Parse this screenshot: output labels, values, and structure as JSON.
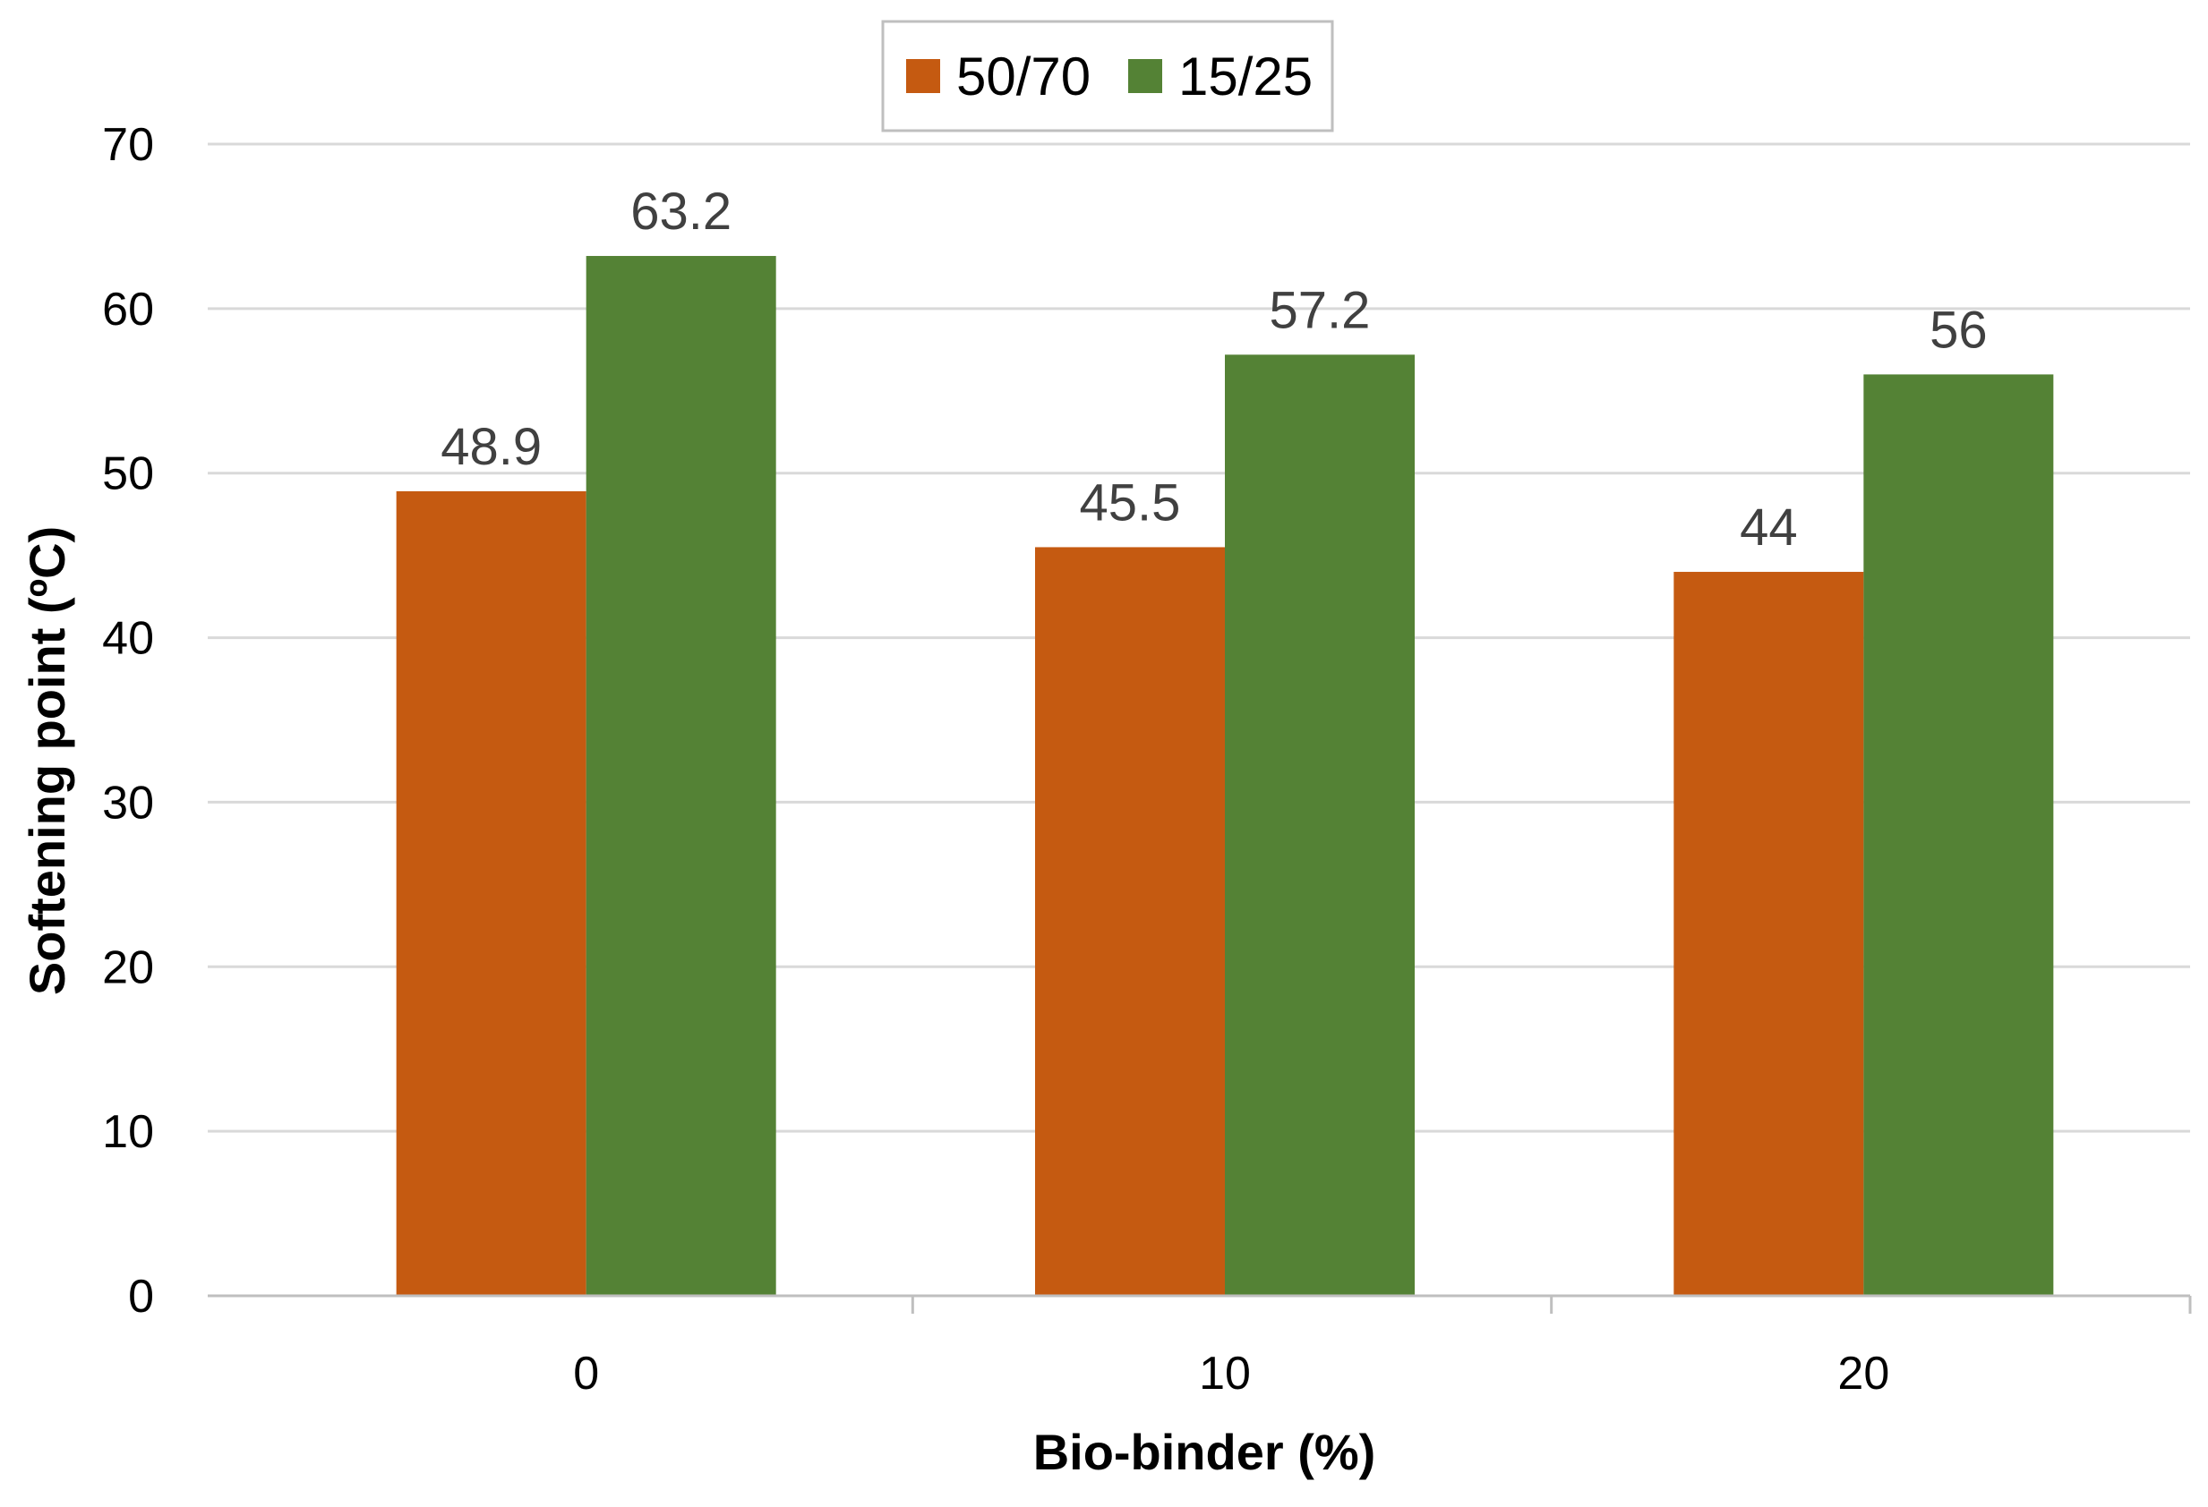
{
  "chart_data": {
    "type": "bar",
    "title": "",
    "xlabel": "Bio-binder (%)",
    "ylabel": "Softening point (ºC)",
    "categories": [
      "0",
      "10",
      "20"
    ],
    "series": [
      {
        "name": "50/70",
        "color": "#c55a11",
        "values": [
          48.9,
          45.5,
          44
        ]
      },
      {
        "name": "15/25",
        "color": "#548235",
        "values": [
          63.2,
          57.2,
          56
        ]
      }
    ],
    "data_labels": [
      [
        "48.9",
        "45.5",
        "44"
      ],
      [
        "63.2",
        "57.2",
        "56"
      ]
    ],
    "ylim": [
      0,
      70
    ],
    "yticks": [
      0,
      10,
      20,
      30,
      40,
      50,
      60,
      70
    ],
    "ytick_labels": [
      "0",
      "10",
      "20",
      "30",
      "40",
      "50",
      "60",
      "70"
    ],
    "grid": true,
    "legend_position": "top-center"
  },
  "colors": {
    "gridline": "#d9d9d9",
    "axis": "#bfbfbf",
    "legend_border": "#bfbfbf"
  }
}
